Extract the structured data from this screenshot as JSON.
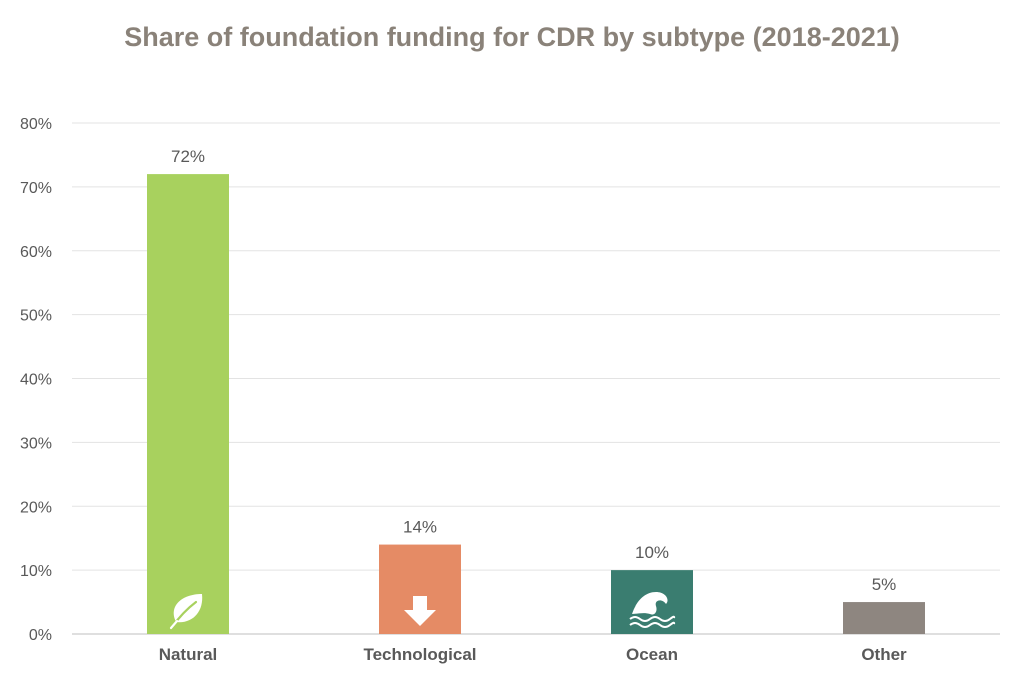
{
  "chart_data": {
    "type": "bar",
    "title": "Share of foundation funding for CDR by subtype (2018-2021)",
    "categories": [
      "Natural",
      "Technological",
      "Ocean",
      "Other"
    ],
    "values": [
      72,
      14,
      10,
      5
    ],
    "data_labels": [
      "72%",
      "14%",
      "10%",
      "5%"
    ],
    "bar_colors": [
      "#a8d15e",
      "#e58b65",
      "#3a7d70",
      "#8e8680"
    ],
    "bar_icons": [
      "leaf-icon",
      "down-arrow-icon",
      "wave-icon",
      ""
    ],
    "ylim": [
      0,
      80
    ],
    "yticks": [
      0,
      10,
      20,
      30,
      40,
      50,
      60,
      70,
      80
    ],
    "ytick_labels": [
      "0%",
      "10%",
      "20%",
      "30%",
      "40%",
      "50%",
      "60%",
      "70%",
      "80%"
    ],
    "xlabel": "",
    "ylabel": "",
    "grid": true,
    "legend": "none"
  }
}
